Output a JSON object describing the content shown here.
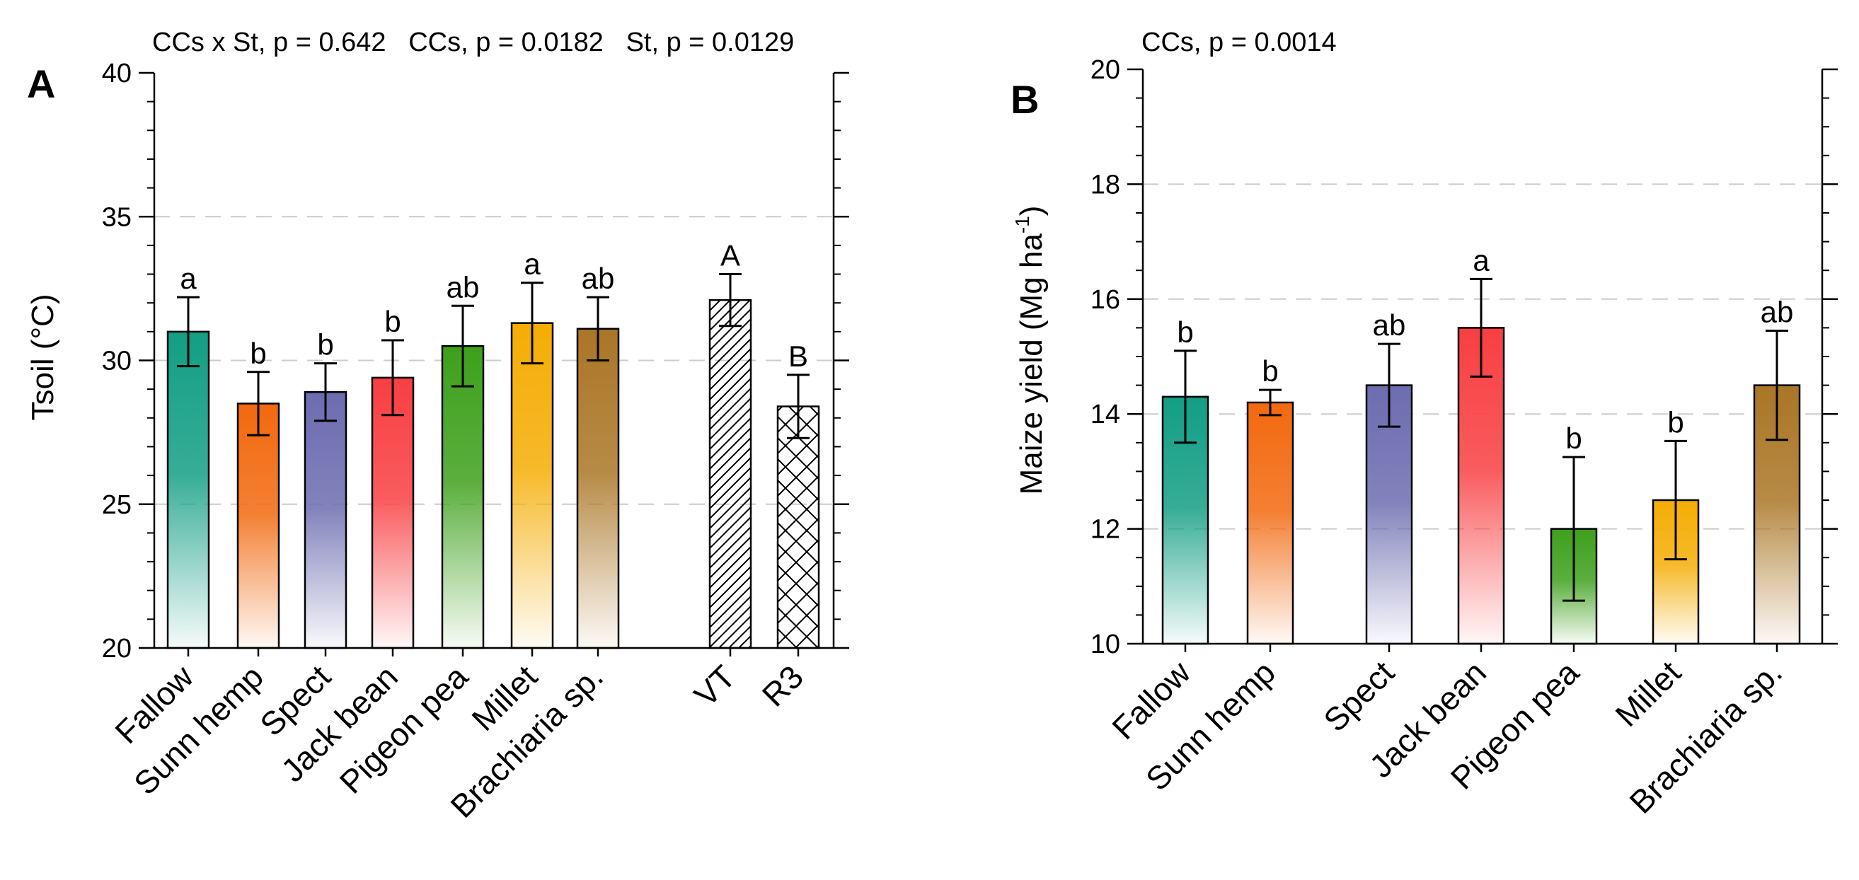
{
  "chart_data": [
    {
      "type": "bar",
      "panel": "A",
      "stats_text": "CCs x St, p = 0.642   CCs, p = 0.0182   St, p = 0.0129",
      "ylabel": "Tsoil (°C)",
      "ylim": [
        20,
        40
      ],
      "yticks": [
        20,
        25,
        30,
        35,
        40
      ],
      "yticks_labels": [
        "20",
        "25",
        "30",
        "35",
        "40"
      ],
      "grid": "dashed at 25, 30, 35",
      "bars": [
        {
          "category": "Fallow",
          "value": 31.0,
          "err": 1.2,
          "letter": "a",
          "color": "#139e84",
          "fill": "gradient"
        },
        {
          "category": "Sunn hemp",
          "value": 28.5,
          "err": 1.1,
          "letter": "b",
          "color": "#f2690f",
          "fill": "gradient"
        },
        {
          "category": "Spect",
          "value": 28.9,
          "err": 1.0,
          "letter": "b",
          "color": "#6c6cb0",
          "fill": "gradient"
        },
        {
          "category": "Jack bean",
          "value": 29.4,
          "err": 1.3,
          "letter": "b",
          "color": "#f83f42",
          "fill": "gradient"
        },
        {
          "category": "Pigeon pea",
          "value": 30.5,
          "err": 1.4,
          "letter": "ab",
          "color": "#3ea01c",
          "fill": "gradient"
        },
        {
          "category": "Millet",
          "value": 31.3,
          "err": 1.4,
          "letter": "a",
          "color": "#f5ad05",
          "fill": "gradient"
        },
        {
          "category": "Brachiaria sp.",
          "value": 31.1,
          "err": 1.1,
          "letter": "ab",
          "color": "#aa7626",
          "fill": "gradient"
        },
        {
          "category": "VT",
          "value": 32.1,
          "err": 0.9,
          "letter": "A",
          "color": "#000000",
          "fill": "hatch"
        },
        {
          "category": "R3",
          "value": 28.4,
          "err": 1.1,
          "letter": "B",
          "color": "#000000",
          "fill": "crosshatch"
        }
      ]
    },
    {
      "type": "bar",
      "panel": "B",
      "stats_text": "CCs, p = 0.0014",
      "ylabel": "Maize yield (Mg ha",
      "ylabel_sup": "-1",
      "ylabel_close": ")",
      "ylim": [
        10,
        20
      ],
      "yticks": [
        10,
        12,
        14,
        16,
        18,
        20
      ],
      "yticks_labels": [
        "10",
        "12",
        "14",
        "16",
        "18",
        "20"
      ],
      "grid": "dashed at 12, 14, 16, 18",
      "bars": [
        {
          "category": "Fallow",
          "value": 14.3,
          "err": 0.8,
          "letter": "b",
          "color": "#139e84"
        },
        {
          "category": "Sunn hemp",
          "value": 14.2,
          "err": 0.22,
          "letter": "b",
          "color": "#f2690f"
        },
        {
          "category": "Spect",
          "value": 14.5,
          "err": 0.72,
          "letter": "ab",
          "color": "#6c6cb0"
        },
        {
          "category": "Jack bean",
          "value": 15.5,
          "err": 0.85,
          "letter": "a",
          "color": "#f83f42"
        },
        {
          "category": "Pigeon pea",
          "value": 12.0,
          "err": 1.25,
          "letter": "b",
          "color": "#3ea01c"
        },
        {
          "category": "Millet",
          "value": 12.5,
          "err": 1.03,
          "letter": "b",
          "color": "#f5ad05"
        },
        {
          "category": "Brachiaria sp.",
          "value": 14.5,
          "err": 0.95,
          "letter": "ab",
          "color": "#aa7626"
        }
      ]
    }
  ]
}
